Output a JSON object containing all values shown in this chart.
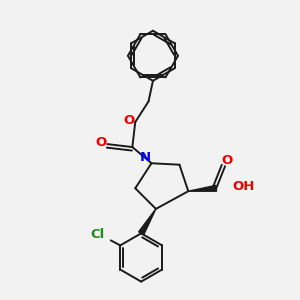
{
  "background_color": "#f2f2f2",
  "bond_color": "#1a1a1a",
  "nitrogen_color": "#0000ee",
  "oxygen_color": "#ee0000",
  "chlorine_color": "#228b22",
  "figsize": [
    3.0,
    3.0
  ],
  "dpi": 100,
  "xlim": [
    0,
    10
  ],
  "ylim": [
    0,
    10
  ]
}
